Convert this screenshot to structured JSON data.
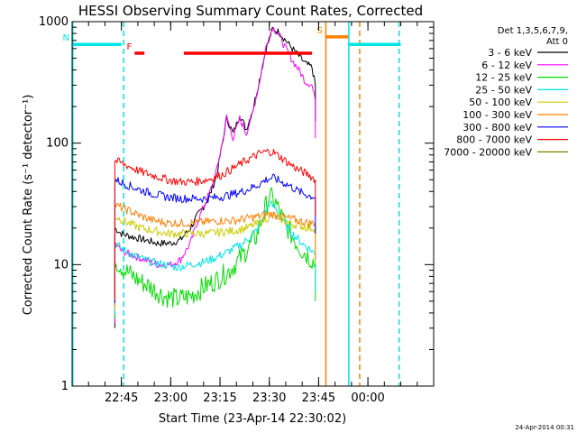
{
  "chart_data": {
    "type": "line",
    "title": "HESSI Observing Summary Count Rates, Corrected",
    "xlabel": "Start Time (23-Apr-14 22:30:02)",
    "ylabel": "Corrected Count Rate (s⁻¹ detector⁻¹)",
    "yscale": "log",
    "ylim": [
      1,
      1000
    ],
    "xlim": [
      "22:30",
      "00:20"
    ],
    "y_ticks": [
      "1",
      "10",
      "100",
      "1000"
    ],
    "x_ticks": [
      {
        "t": 45,
        "label": "22:45"
      },
      {
        "t": 60,
        "label": "23:00"
      },
      {
        "t": 75,
        "label": "23:15"
      },
      {
        "t": 90,
        "label": "23:30"
      },
      {
        "t": 105,
        "label": "23:45"
      },
      {
        "t": 120,
        "label": "00:00"
      }
    ],
    "legend": {
      "placement": "right",
      "header": [
        "Det 1,3,5,6,7,9,",
        "Att 0"
      ]
    },
    "x_unit": "minutes after 22:30",
    "series": [
      {
        "name": "3 - 6 keV",
        "color": "#000000",
        "points": [
          [
            43,
            20
          ],
          [
            45,
            18
          ],
          [
            48,
            17
          ],
          [
            52,
            16
          ],
          [
            56,
            15
          ],
          [
            60,
            15
          ],
          [
            63,
            16
          ],
          [
            66,
            20
          ],
          [
            68,
            25
          ],
          [
            70,
            30
          ],
          [
            72,
            38
          ],
          [
            74,
            55
          ],
          [
            76,
            110
          ],
          [
            77,
            160
          ],
          [
            79,
            120
          ],
          [
            81,
            170
          ],
          [
            83,
            130
          ],
          [
            85,
            190
          ],
          [
            87,
            330
          ],
          [
            89,
            600
          ],
          [
            91,
            870
          ],
          [
            93,
            820
          ],
          [
            95,
            700
          ],
          [
            97,
            600
          ],
          [
            99,
            520
          ],
          [
            101,
            450
          ],
          [
            103,
            420
          ],
          [
            104,
            300
          ]
        ]
      },
      {
        "name": "6 - 12 keV",
        "color": "#ff00ff",
        "points": [
          [
            43,
            15
          ],
          [
            45,
            13
          ],
          [
            48,
            12
          ],
          [
            52,
            11
          ],
          [
            56,
            10
          ],
          [
            60,
            10
          ],
          [
            63,
            11
          ],
          [
            66,
            15
          ],
          [
            68,
            22
          ],
          [
            70,
            30
          ],
          [
            72,
            40
          ],
          [
            74,
            60
          ],
          [
            76,
            110
          ],
          [
            77,
            165
          ],
          [
            79,
            110
          ],
          [
            81,
            160
          ],
          [
            83,
            120
          ],
          [
            85,
            180
          ],
          [
            87,
            320
          ],
          [
            89,
            620
          ],
          [
            91,
            900
          ],
          [
            93,
            780
          ],
          [
            95,
            600
          ],
          [
            97,
            480
          ],
          [
            99,
            400
          ],
          [
            101,
            320
          ],
          [
            103,
            300
          ],
          [
            104,
            220
          ]
        ]
      },
      {
        "name": "12 - 25 keV",
        "color": "#00dd00",
        "points": [
          [
            43,
            11
          ],
          [
            46,
            9
          ],
          [
            50,
            7.5
          ],
          [
            54,
            6.5
          ],
          [
            58,
            5.5
          ],
          [
            62,
            5.2
          ],
          [
            66,
            5.5
          ],
          [
            70,
            6.5
          ],
          [
            74,
            7.5
          ],
          [
            78,
            9
          ],
          [
            82,
            12
          ],
          [
            86,
            17
          ],
          [
            88,
            25
          ],
          [
            90,
            37
          ],
          [
            92,
            32
          ],
          [
            94,
            24
          ],
          [
            97,
            17
          ],
          [
            100,
            13
          ],
          [
            103,
            11
          ],
          [
            104,
            10
          ]
        ]
      },
      {
        "name": "25 - 50 keV",
        "color": "#00e5e5",
        "points": [
          [
            43,
            15
          ],
          [
            46,
            13
          ],
          [
            50,
            11.5
          ],
          [
            54,
            10.5
          ],
          [
            58,
            10
          ],
          [
            62,
            9.5
          ],
          [
            66,
            10
          ],
          [
            70,
            10.5
          ],
          [
            74,
            11.5
          ],
          [
            78,
            13
          ],
          [
            82,
            15
          ],
          [
            86,
            19
          ],
          [
            88,
            24
          ],
          [
            90,
            32
          ],
          [
            92,
            29
          ],
          [
            94,
            23
          ],
          [
            97,
            18
          ],
          [
            100,
            15
          ],
          [
            103,
            13
          ],
          [
            104,
            12
          ]
        ]
      },
      {
        "name": "50 - 100 keV",
        "color": "#cccc00",
        "points": [
          [
            43,
            25
          ],
          [
            47,
            22
          ],
          [
            51,
            20
          ],
          [
            55,
            19
          ],
          [
            59,
            18
          ],
          [
            63,
            18
          ],
          [
            67,
            18
          ],
          [
            71,
            18
          ],
          [
            75,
            18.5
          ],
          [
            79,
            19
          ],
          [
            83,
            20
          ],
          [
            87,
            22
          ],
          [
            89,
            24
          ],
          [
            91,
            25
          ],
          [
            93,
            24
          ],
          [
            96,
            22
          ],
          [
            99,
            21
          ],
          [
            102,
            20
          ],
          [
            104,
            20
          ]
        ]
      },
      {
        "name": "100 - 300 keV",
        "color": "#ff8000",
        "points": [
          [
            43,
            31
          ],
          [
            47,
            28
          ],
          [
            51,
            25
          ],
          [
            55,
            23
          ],
          [
            59,
            22
          ],
          [
            63,
            22
          ],
          [
            67,
            22
          ],
          [
            71,
            22.5
          ],
          [
            75,
            23
          ],
          [
            79,
            23
          ],
          [
            83,
            24
          ],
          [
            87,
            25
          ],
          [
            89,
            26
          ],
          [
            91,
            26
          ],
          [
            93,
            25
          ],
          [
            96,
            24
          ],
          [
            99,
            23
          ],
          [
            102,
            22
          ],
          [
            104,
            22
          ]
        ]
      },
      {
        "name": "300 - 800 keV",
        "color": "#0000ff",
        "points": [
          [
            43,
            50
          ],
          [
            47,
            45
          ],
          [
            51,
            41
          ],
          [
            55,
            38
          ],
          [
            59,
            36
          ],
          [
            63,
            35
          ],
          [
            67,
            35
          ],
          [
            71,
            35
          ],
          [
            75,
            36
          ],
          [
            79,
            38
          ],
          [
            83,
            41
          ],
          [
            87,
            46
          ],
          [
            89,
            50
          ],
          [
            91,
            52
          ],
          [
            93,
            49
          ],
          [
            96,
            45
          ],
          [
            99,
            40
          ],
          [
            102,
            37
          ],
          [
            104,
            36
          ]
        ]
      },
      {
        "name": "800 - 7000 keV",
        "color": "#ff0000",
        "points": [
          [
            43,
            72
          ],
          [
            47,
            65
          ],
          [
            51,
            58
          ],
          [
            55,
            54
          ],
          [
            59,
            50
          ],
          [
            63,
            48
          ],
          [
            67,
            48
          ],
          [
            71,
            50
          ],
          [
            75,
            54
          ],
          [
            79,
            62
          ],
          [
            83,
            72
          ],
          [
            87,
            82
          ],
          [
            89,
            85
          ],
          [
            91,
            85
          ],
          [
            93,
            78
          ],
          [
            96,
            68
          ],
          [
            99,
            60
          ],
          [
            102,
            55
          ],
          [
            104,
            50
          ]
        ]
      },
      {
        "name": "7000 - 20000 keV",
        "color": "#808000",
        "points": []
      }
    ],
    "state_bars": [
      {
        "label": "F",
        "color": "#ff0000",
        "y": 550,
        "segments": [
          [
            49,
            52
          ],
          [
            64,
            103
          ]
        ]
      },
      {
        "label": "N",
        "color": "#00e5e5",
        "y": 650,
        "segments": [
          [
            30,
            45
          ],
          [
            114,
            130
          ]
        ]
      },
      {
        "label": "S",
        "color": "#ff8000",
        "y": 750,
        "segments": [
          [
            107,
            114
          ]
        ]
      }
    ],
    "vertical_lines": [
      {
        "t": 30.2,
        "color": "#00e5e5",
        "style": "solid"
      },
      {
        "t": 45.7,
        "color": "#00e5e5",
        "style": "dashed"
      },
      {
        "t": 107.2,
        "color": "#ff8000",
        "style": "solid"
      },
      {
        "t": 114.2,
        "color": "#00e5e5",
        "style": "solid"
      },
      {
        "t": 117.5,
        "color": "#ff8000",
        "style": "dashed"
      },
      {
        "t": 129.5,
        "color": "#00e5e5",
        "style": "dashed"
      }
    ]
  },
  "footer_timestamp": "24-Apr-2014 00:31"
}
